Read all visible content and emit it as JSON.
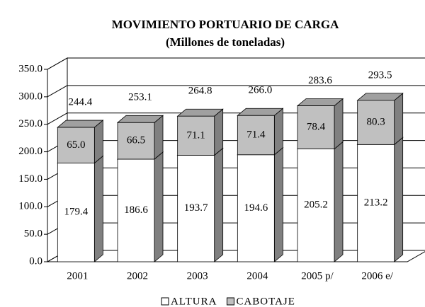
{
  "chart_data": {
    "type": "bar3d_stacked",
    "title": "MOVIMIENTO PORTUARIO DE CARGA",
    "subtitle": "(Millones de toneladas)",
    "categories": [
      "2001",
      "2002",
      "2003",
      "2004",
      "2005 p/",
      "2006 e/"
    ],
    "series": [
      {
        "name": "ALTURA",
        "color": "#ffffff",
        "values": [
          179.4,
          186.6,
          193.7,
          194.6,
          205.2,
          213.2
        ],
        "value_labels": [
          "179.4",
          "186.6",
          "193.7",
          "194.6",
          "205.2",
          "213.2"
        ]
      },
      {
        "name": "CABOTAJE",
        "color": "#c0c0c0",
        "values": [
          65.0,
          66.5,
          71.1,
          71.4,
          78.4,
          80.3
        ],
        "value_labels": [
          "65.0",
          "66.5",
          "71.1",
          "71.4",
          "78.4",
          "80.3"
        ]
      }
    ],
    "totals": [
      244.4,
      253.1,
      264.8,
      266.0,
      283.6,
      293.5
    ],
    "total_labels": [
      "244.4",
      "253.1",
      "264.8",
      "266.0",
      "283.6",
      "293.5"
    ],
    "ylim": [
      0,
      350
    ],
    "yticks": [
      {
        "value": 0,
        "label": "0.0"
      },
      {
        "value": 50,
        "label": "50.0"
      },
      {
        "value": 100,
        "label": "100.0"
      },
      {
        "value": 150,
        "label": "150.0"
      },
      {
        "value": 200,
        "label": "200.0"
      },
      {
        "value": 250,
        "label": "250.0"
      },
      {
        "value": 300,
        "label": "300.0"
      },
      {
        "value": 350,
        "label": "350.0"
      }
    ],
    "grid": true,
    "legend": "bottom"
  }
}
